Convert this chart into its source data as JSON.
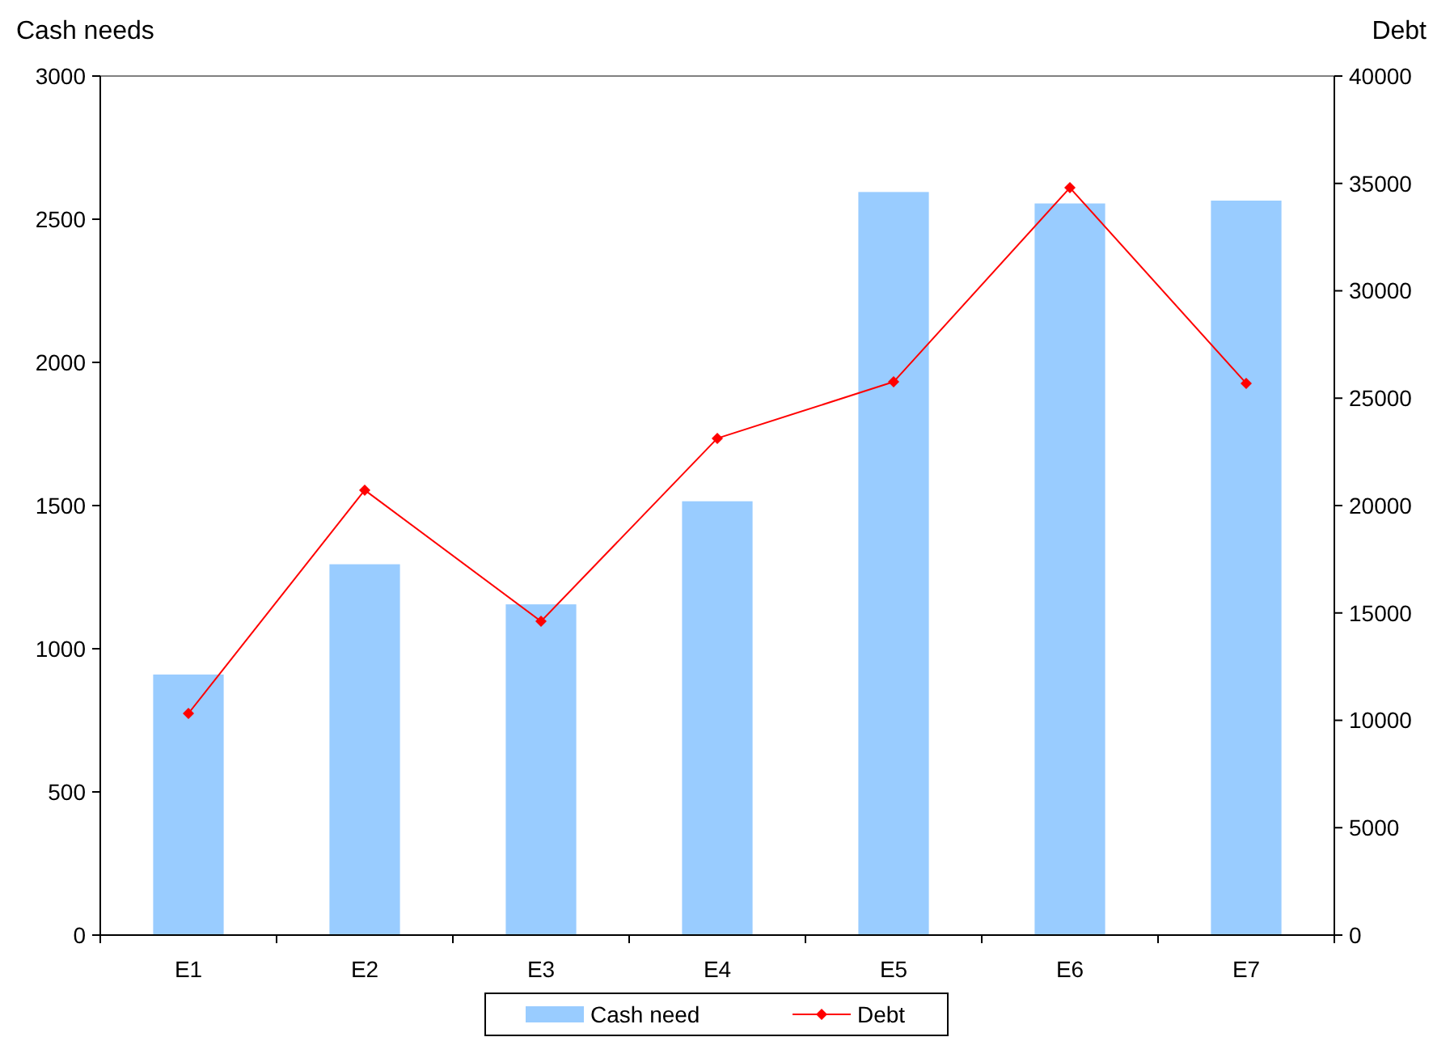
{
  "chart_data": {
    "type": "bar",
    "ylabel": "Cash needs",
    "y2label": "Debt",
    "categories": [
      "E1",
      "E2",
      "E3",
      "E4",
      "E5",
      "E6",
      "E7"
    ],
    "series": [
      {
        "name": "Cash need",
        "color": "#99ccff",
        "values": [
          910,
          1295,
          1155,
          1515,
          2595,
          2555,
          2565
        ]
      },
      {
        "name": "Debt",
        "type": "line",
        "axis": "y2",
        "color": "#ff0000",
        "marker": "diamond",
        "values": [
          10320,
          20720,
          14610,
          23130,
          25760,
          34800,
          25690
        ]
      }
    ],
    "ylim": [
      0,
      3000
    ],
    "yticks": [
      0,
      500,
      1000,
      1500,
      2000,
      2500,
      3000
    ],
    "y2lim": [
      0,
      40000
    ],
    "y2ticks": [
      0,
      5000,
      10000,
      15000,
      20000,
      25000,
      30000,
      35000,
      40000
    ],
    "grid": false,
    "legend": "bottom"
  }
}
